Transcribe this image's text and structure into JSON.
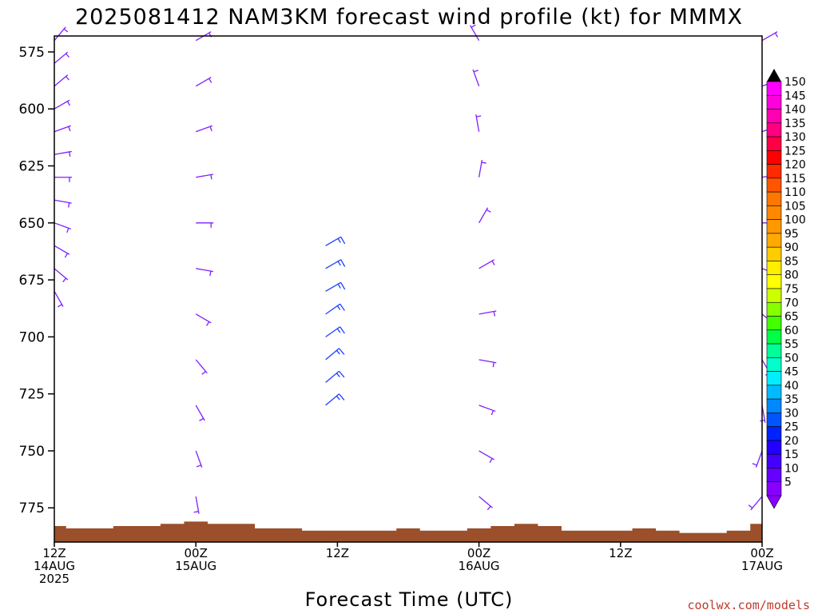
{
  "title": "2025081412 NAM3KM forecast wind profile (kt) for MMMX",
  "xlabel": "Forecast Time (UTC)",
  "credit": "coolwx.com/models",
  "colors": {
    "terrain": "#9b4f2a",
    "barb_default": "#7f1fff",
    "barb_strong": "#1f3fff",
    "frame": "#000000"
  },
  "chart_data": {
    "type": "wind_profile",
    "ylabel": "",
    "y_axis": {
      "ticks": [
        575,
        600,
        625,
        650,
        675,
        700,
        725,
        750,
        775
      ],
      "range": [
        568,
        790
      ],
      "inverted": true
    },
    "x_axis": {
      "ticks": [
        {
          "hour": 0,
          "lines": [
            "12Z",
            "14AUG",
            "2025"
          ]
        },
        {
          "hour": 12,
          "lines": [
            "00Z",
            "15AUG"
          ]
        },
        {
          "hour": 24,
          "lines": [
            "12Z"
          ]
        },
        {
          "hour": 36,
          "lines": [
            "00Z",
            "16AUG"
          ]
        },
        {
          "hour": 48,
          "lines": [
            "12Z"
          ]
        },
        {
          "hour": 60,
          "lines": [
            "00Z",
            "17AUG"
          ]
        }
      ],
      "range_hours": [
        0,
        60
      ],
      "step_hours": 2
    },
    "colorbar": {
      "labels": [
        150,
        145,
        140,
        135,
        130,
        125,
        120,
        115,
        110,
        105,
        100,
        95,
        90,
        85,
        80,
        75,
        70,
        65,
        60,
        55,
        50,
        45,
        40,
        35,
        30,
        25,
        20,
        15,
        10,
        5
      ],
      "colors": [
        "#ff00ff",
        "#ff00dd",
        "#ff00b0",
        "#ff0080",
        "#ff0044",
        "#ff0000",
        "#ff2a00",
        "#ff5500",
        "#ff7700",
        "#ff8800",
        "#ff9900",
        "#ffaa00",
        "#ffcc00",
        "#ffee00",
        "#ffff00",
        "#ccff00",
        "#88ff00",
        "#44ff00",
        "#00ff44",
        "#00ff99",
        "#00ffcc",
        "#00eeff",
        "#00bbff",
        "#0088ff",
        "#0055ff",
        "#0022ff",
        "#2200ff",
        "#4400ff",
        "#6600ff",
        "#8800ff"
      ],
      "top_arrow": "#000000",
      "bottom_arrow": "#8800ff"
    },
    "surface_pressure": [
      783,
      784,
      784,
      783,
      783,
      782,
      781,
      782,
      782,
      784,
      784,
      785,
      785,
      785,
      785,
      784,
      785,
      785,
      784,
      783,
      782,
      783,
      785,
      785,
      785,
      784,
      785,
      786,
      786,
      785,
      782
    ],
    "barb_columns": [
      {
        "hour": 0,
        "levels": [
          {
            "p": 570,
            "dir": 40,
            "spd": 5
          },
          {
            "p": 580,
            "dir": 50,
            "spd": 5
          },
          {
            "p": 590,
            "dir": 50,
            "spd": 5
          },
          {
            "p": 600,
            "dir": 60,
            "spd": 5
          },
          {
            "p": 610,
            "dir": 70,
            "spd": 5
          },
          {
            "p": 620,
            "dir": 80,
            "spd": 5
          },
          {
            "p": 630,
            "dir": 90,
            "spd": 5
          },
          {
            "p": 640,
            "dir": 100,
            "spd": 5
          },
          {
            "p": 650,
            "dir": 110,
            "spd": 5
          },
          {
            "p": 660,
            "dir": 120,
            "spd": 5
          },
          {
            "p": 670,
            "dir": 130,
            "spd": 5
          },
          {
            "p": 680,
            "dir": 150,
            "spd": 5
          }
        ]
      },
      {
        "hour": 12,
        "levels": [
          {
            "p": 570,
            "dir": 60,
            "spd": 5
          },
          {
            "p": 590,
            "dir": 60,
            "spd": 5
          },
          {
            "p": 610,
            "dir": 70,
            "spd": 5
          },
          {
            "p": 630,
            "dir": 80,
            "spd": 5
          },
          {
            "p": 650,
            "dir": 90,
            "spd": 5
          },
          {
            "p": 670,
            "dir": 100,
            "spd": 5
          },
          {
            "p": 690,
            "dir": 120,
            "spd": 5
          },
          {
            "p": 710,
            "dir": 140,
            "spd": 5
          },
          {
            "p": 730,
            "dir": 150,
            "spd": 5
          },
          {
            "p": 750,
            "dir": 160,
            "spd": 5
          },
          {
            "p": 770,
            "dir": 170,
            "spd": 5
          }
        ]
      },
      {
        "hour": 23,
        "levels": [
          {
            "p": 660,
            "dir": 60,
            "spd": 15
          },
          {
            "p": 670,
            "dir": 60,
            "spd": 15
          },
          {
            "p": 680,
            "dir": 60,
            "spd": 15
          },
          {
            "p": 690,
            "dir": 55,
            "spd": 15
          },
          {
            "p": 700,
            "dir": 55,
            "spd": 15
          },
          {
            "p": 710,
            "dir": 50,
            "spd": 15
          },
          {
            "p": 720,
            "dir": 50,
            "spd": 15
          },
          {
            "p": 730,
            "dir": 50,
            "spd": 15
          }
        ]
      },
      {
        "hour": 36,
        "levels": [
          {
            "p": 570,
            "dir": 330,
            "spd": 5
          },
          {
            "p": 590,
            "dir": 340,
            "spd": 5
          },
          {
            "p": 610,
            "dir": 350,
            "spd": 5
          },
          {
            "p": 630,
            "dir": 10,
            "spd": 5
          },
          {
            "p": 650,
            "dir": 30,
            "spd": 5
          },
          {
            "p": 670,
            "dir": 60,
            "spd": 5
          },
          {
            "p": 690,
            "dir": 80,
            "spd": 5
          },
          {
            "p": 710,
            "dir": 100,
            "spd": 5
          },
          {
            "p": 730,
            "dir": 110,
            "spd": 5
          },
          {
            "p": 750,
            "dir": 120,
            "spd": 5
          },
          {
            "p": 770,
            "dir": 130,
            "spd": 5
          }
        ]
      },
      {
        "hour": 60,
        "levels": [
          {
            "p": 570,
            "dir": 60,
            "spd": 5
          },
          {
            "p": 590,
            "dir": 70,
            "spd": 5
          },
          {
            "p": 610,
            "dir": 70,
            "spd": 5
          },
          {
            "p": 630,
            "dir": 80,
            "spd": 5
          },
          {
            "p": 650,
            "dir": 90,
            "spd": 5
          },
          {
            "p": 670,
            "dir": 110,
            "spd": 5
          },
          {
            "p": 690,
            "dir": 130,
            "spd": 5
          },
          {
            "p": 710,
            "dir": 150,
            "spd": 5
          },
          {
            "p": 730,
            "dir": 170,
            "spd": 5
          },
          {
            "p": 750,
            "dir": 200,
            "spd": 5
          },
          {
            "p": 770,
            "dir": 220,
            "spd": 5
          }
        ]
      }
    ]
  }
}
